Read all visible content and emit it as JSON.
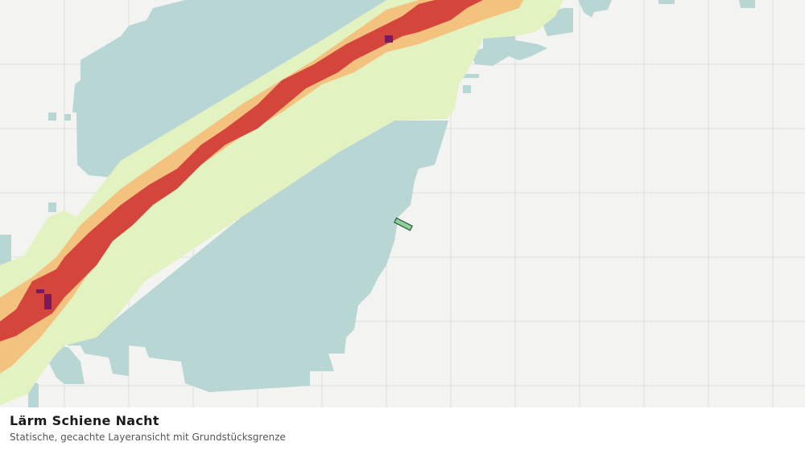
{
  "title": "Lärm Schiene Nacht",
  "subtitle": "Statische, gecachte Layeransicht mit Grundstücksgrenze"
}
